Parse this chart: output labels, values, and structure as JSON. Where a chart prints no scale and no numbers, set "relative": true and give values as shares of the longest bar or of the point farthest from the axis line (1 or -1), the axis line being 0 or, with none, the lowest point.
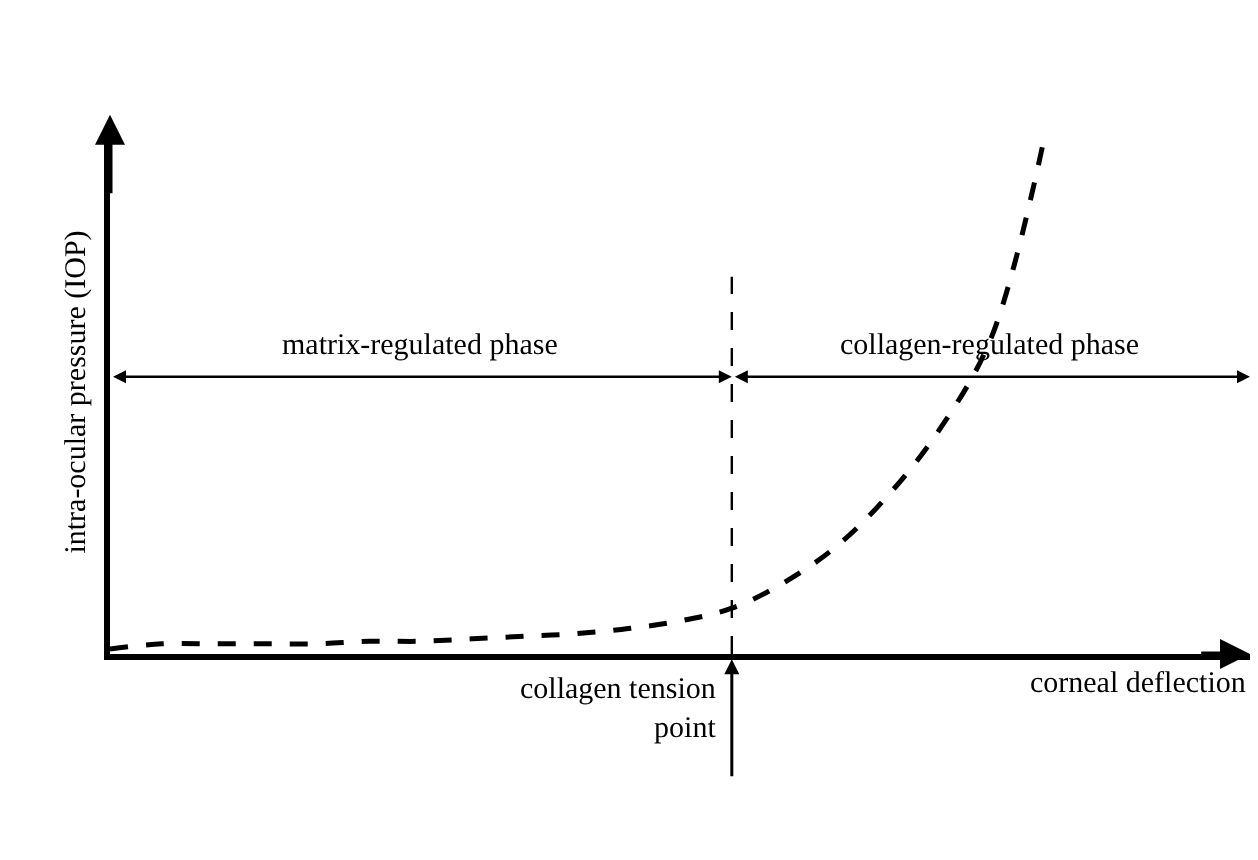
{
  "chart_data": {
    "type": "line",
    "relative": true,
    "line_style": "dashed",
    "marker": "none",
    "xlabel": "corneal deflection",
    "ylabel": "intra-ocular pressure (IOP)",
    "categories": [
      null,
      null,
      null,
      null,
      null,
      null,
      null,
      null,
      null,
      null,
      null,
      null,
      null,
      null,
      null,
      null,
      null,
      null,
      null
    ],
    "series": [
      {
        "color": "#000000",
        "values": [
          0.01,
          0.02,
          0.02,
          0.02,
          0.02,
          0.025,
          0.025,
          0.03,
          0.035,
          0.04,
          0.05,
          0.065,
          0.09,
          0.14,
          0.21,
          0.31,
          0.44,
          0.62,
          1.0
        ]
      }
    ],
    "annotations": [
      "matrix-regulated phase",
      "collagen-regulated phase",
      "collagen tension point"
    ]
  }
}
